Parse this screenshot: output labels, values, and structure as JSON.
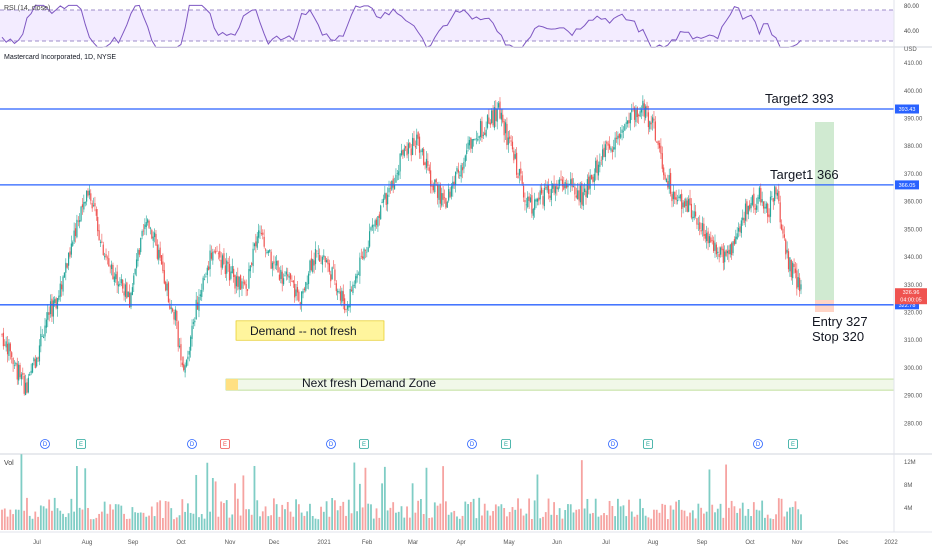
{
  "header": {
    "title": "Mastercard Incorporated, 1D, NYSE"
  },
  "rsi": {
    "label": "RSI (14, close)",
    "levels": [
      "80.00",
      "40.00"
    ],
    "upper": 80,
    "lower": 40
  },
  "volume": {
    "label": "Vol",
    "ticks": [
      "12M",
      "8M",
      "4M"
    ]
  },
  "colors": {
    "up": "#26a69a",
    "down": "#ef5350",
    "level": "#2962ff",
    "rsi": "#7e57c2"
  },
  "chart_data": {
    "type": "candlestick",
    "symbol": "Mastercard Incorporated, 1D, NYSE",
    "y_unit": "USD",
    "y_range": [
      274,
      414
    ],
    "y_ticks": [
      "410.00",
      "400.00",
      "390.00",
      "380.00",
      "370.00",
      "360.00",
      "350.00",
      "340.00",
      "330.00",
      "320.00",
      "310.00",
      "300.00",
      "290.00",
      "280.00"
    ],
    "x_ticks": [
      "Jul",
      "Aug",
      "Sep",
      "Oct",
      "Nov",
      "Dec",
      "2021",
      "Feb",
      "Mar",
      "Apr",
      "May",
      "Jun",
      "Jul",
      "Aug",
      "Sep",
      "Oct",
      "Nov",
      "Dec",
      "2022"
    ],
    "levels": [
      {
        "value": 393.43,
        "label": "393.43",
        "annotation": "Target2 393"
      },
      {
        "value": 366.05,
        "label": "366.05",
        "annotation": "Target1 366"
      },
      {
        "value": 322.78,
        "label": "322.78",
        "annotation": ""
      }
    ],
    "current_price": {
      "value": 326.96,
      "label": "326.96",
      "countdown": "04:00:05"
    },
    "trade_note": [
      "Entry 327",
      "Stop 320"
    ],
    "zones": [
      {
        "label": "Demand -- not fresh",
        "from": 310,
        "to": 317
      },
      {
        "label": "Next fresh Demand Zone",
        "from": 292,
        "to": 296
      }
    ],
    "event_markers": [
      {
        "type": "D",
        "label": "D"
      },
      {
        "type": "E",
        "label": "E"
      },
      {
        "type": "D",
        "label": "D"
      },
      {
        "type": "E",
        "label": "E"
      },
      {
        "type": "D",
        "label": "D"
      },
      {
        "type": "E",
        "label": "E"
      },
      {
        "type": "D",
        "label": "D"
      },
      {
        "type": "E",
        "label": "E"
      },
      {
        "type": "D",
        "label": "D"
      },
      {
        "type": "E",
        "label": "E"
      },
      {
        "type": "D",
        "label": "D"
      },
      {
        "type": "E",
        "label": "E"
      }
    ],
    "price_path": [
      [
        0,
        312
      ],
      [
        10,
        300
      ],
      [
        18,
        292
      ],
      [
        25,
        305
      ],
      [
        32,
        318
      ],
      [
        40,
        325
      ],
      [
        48,
        340
      ],
      [
        56,
        356
      ],
      [
        63,
        366
      ],
      [
        68,
        352
      ],
      [
        76,
        338
      ],
      [
        84,
        332
      ],
      [
        92,
        324
      ],
      [
        98,
        340
      ],
      [
        105,
        354
      ],
      [
        111,
        344
      ],
      [
        118,
        330
      ],
      [
        125,
        318
      ],
      [
        131,
        296
      ],
      [
        137,
        315
      ],
      [
        143,
        328
      ],
      [
        152,
        343
      ],
      [
        160,
        338
      ],
      [
        168,
        332
      ],
      [
        176,
        328
      ],
      [
        184,
        350
      ],
      [
        192,
        340
      ],
      [
        200,
        334
      ],
      [
        208,
        330
      ],
      [
        216,
        325
      ],
      [
        222,
        338
      ],
      [
        230,
        341
      ],
      [
        240,
        332
      ],
      [
        248,
        322
      ],
      [
        256,
        334
      ],
      [
        266,
        350
      ],
      [
        278,
        362
      ],
      [
        290,
        378
      ],
      [
        300,
        382
      ],
      [
        310,
        366
      ],
      [
        320,
        360
      ],
      [
        330,
        372
      ],
      [
        340,
        384
      ],
      [
        350,
        388
      ],
      [
        358,
        394
      ],
      [
        366,
        380
      ],
      [
        374,
        368
      ],
      [
        380,
        358
      ],
      [
        388,
        362
      ],
      [
        398,
        364
      ],
      [
        408,
        366
      ],
      [
        418,
        362
      ],
      [
        428,
        372
      ],
      [
        438,
        380
      ],
      [
        446,
        385
      ],
      [
        454,
        392
      ],
      [
        462,
        394
      ],
      [
        470,
        386
      ],
      [
        476,
        374
      ],
      [
        484,
        362
      ],
      [
        492,
        360
      ],
      [
        500,
        355
      ],
      [
        508,
        348
      ],
      [
        516,
        342
      ],
      [
        522,
        338
      ],
      [
        530,
        350
      ],
      [
        538,
        358
      ],
      [
        546,
        362
      ],
      [
        552,
        356
      ],
      [
        558,
        364
      ],
      [
        566,
        340
      ],
      [
        572,
        332
      ],
      [
        576,
        327
      ]
    ]
  }
}
